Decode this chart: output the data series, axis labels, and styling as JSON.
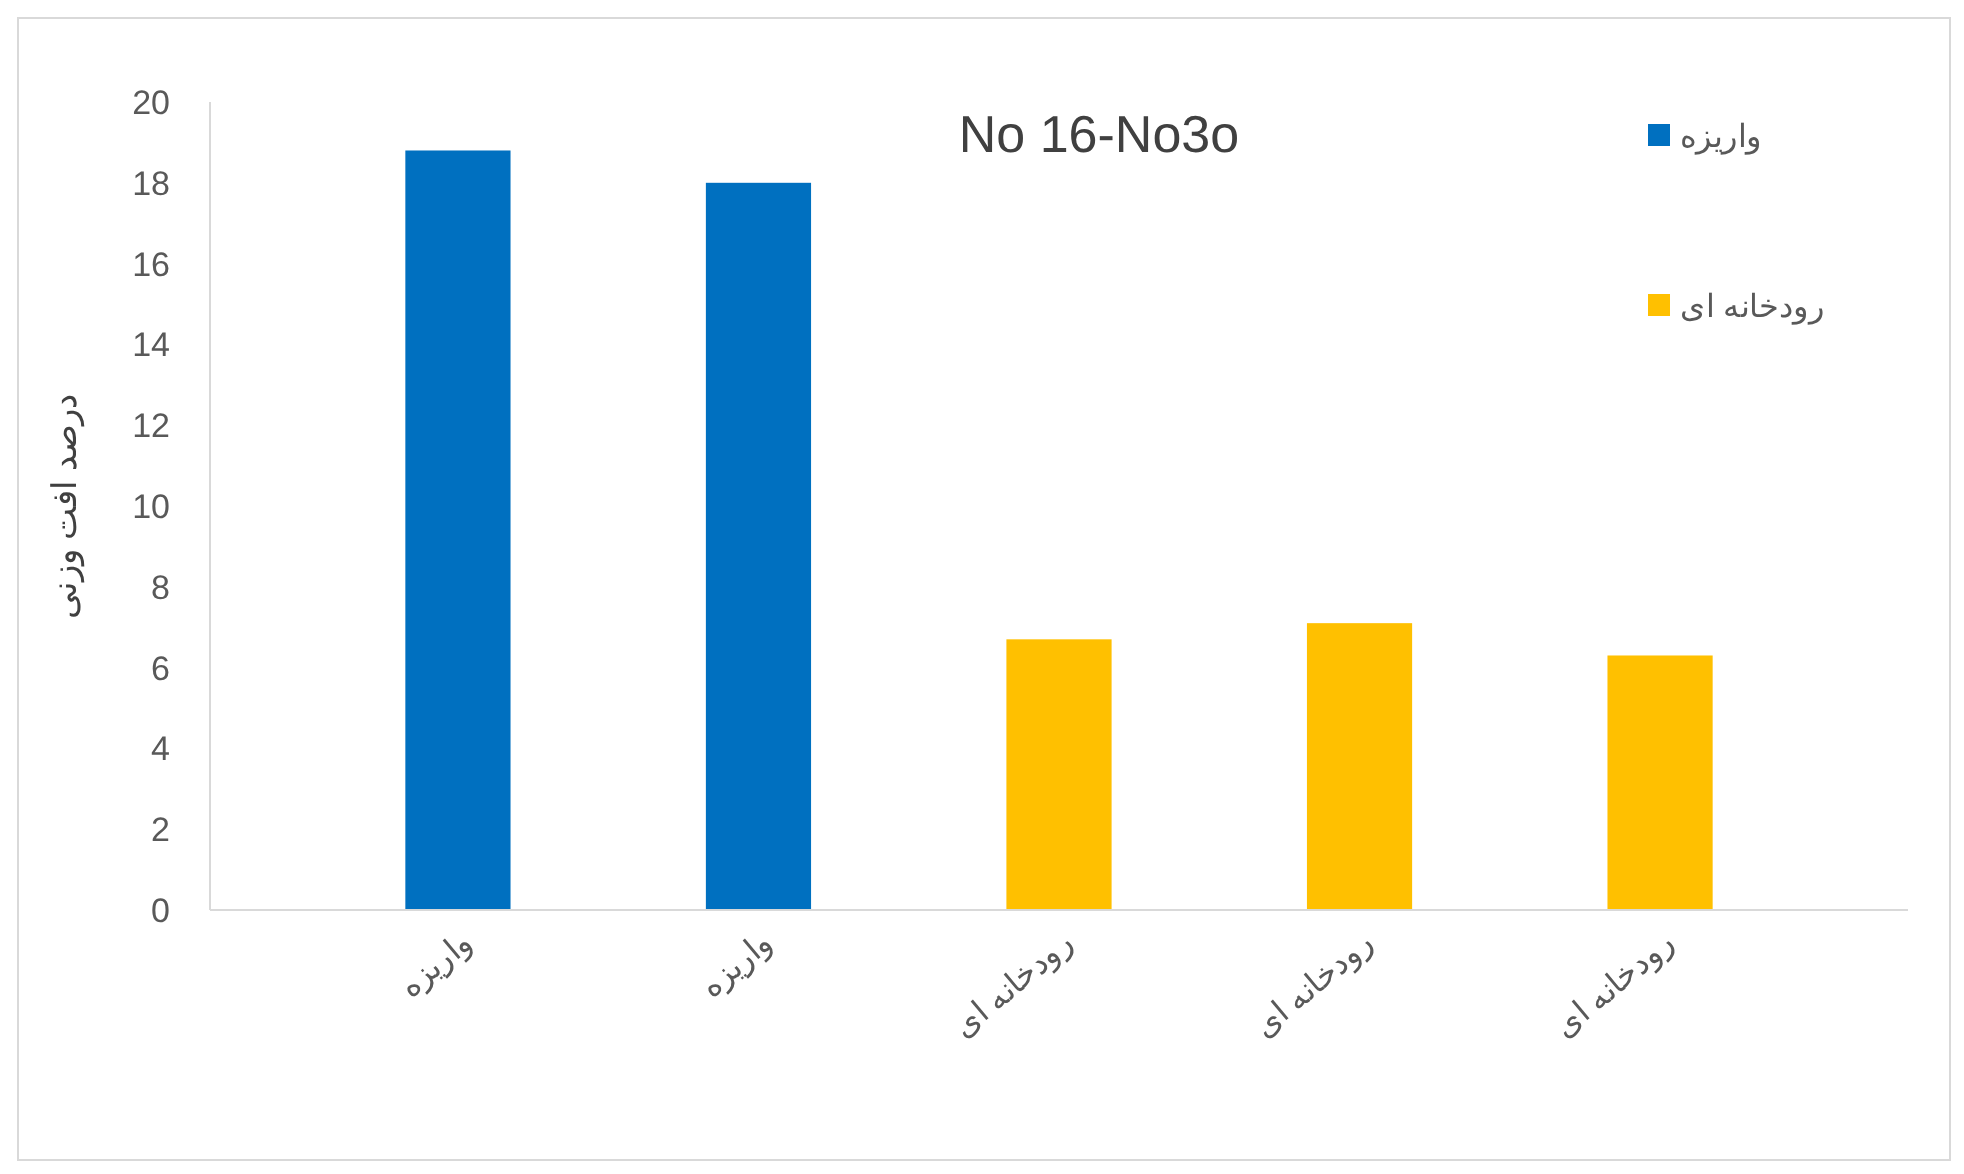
{
  "chart_data": {
    "type": "bar",
    "title": "No 16-No3o",
    "ylabel": "درصد افت وزنی",
    "categories": [
      "واریزه",
      "واریزه",
      "رودخانه ای",
      "رودخانه ای",
      "رودخانه ای"
    ],
    "series": [
      {
        "name": "واریزه",
        "color": "#0070c0",
        "values": [
          18.8,
          18.0,
          null,
          null,
          null
        ]
      },
      {
        "name": "رودخانه ای",
        "color": "#ffc000",
        "values": [
          null,
          null,
          6.7,
          7.1,
          6.3
        ]
      }
    ],
    "ylim": [
      0,
      20
    ],
    "yticks": [
      0,
      2,
      4,
      6,
      8,
      10,
      12,
      14,
      16,
      18,
      20
    ],
    "grid": false,
    "legend": "top right"
  }
}
